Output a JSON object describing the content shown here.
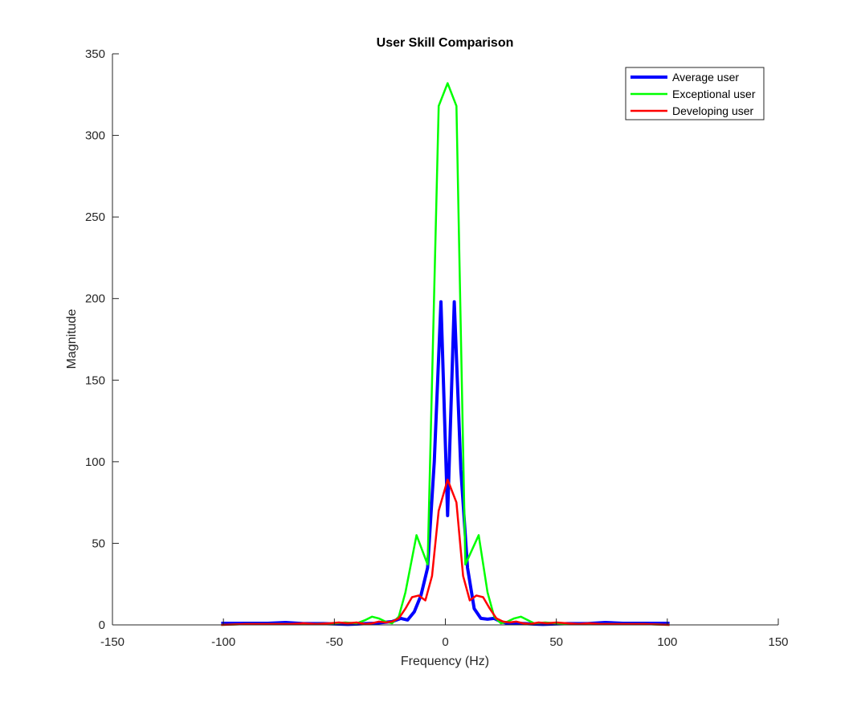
{
  "chart_data": {
    "type": "line",
    "title": "User Skill Comparison",
    "xlabel": "Frequency (Hz)",
    "ylabel": "Magnitude",
    "xlim": [
      -150,
      150
    ],
    "ylim": [
      0,
      350
    ],
    "xticks": [
      -150,
      -100,
      -50,
      0,
      50,
      100,
      150
    ],
    "yticks": [
      0,
      50,
      100,
      150,
      200,
      250,
      300,
      350
    ],
    "xtick_labels": [
      "-150",
      "-100",
      "-50",
      "0",
      "50",
      "100",
      "150"
    ],
    "ytick_labels": [
      "0",
      "50",
      "100",
      "150",
      "200",
      "250",
      "300",
      "350"
    ],
    "grid": false,
    "legend_position": "top-right",
    "series": [
      {
        "name": "Average user",
        "color": "#0000ff",
        "line_width": 4,
        "points": [
          [
            -101,
            1
          ],
          [
            -90,
            1
          ],
          [
            -80,
            1
          ],
          [
            -72,
            1.5
          ],
          [
            -64,
            0.8
          ],
          [
            -55,
            0.8
          ],
          [
            -48,
            0.5
          ],
          [
            -44,
            0.3
          ],
          [
            -40,
            0.5
          ],
          [
            -36,
            0.8
          ],
          [
            -32,
            1
          ],
          [
            -28,
            1.5
          ],
          [
            -24,
            2
          ],
          [
            -20,
            4
          ],
          [
            -17,
            3
          ],
          [
            -14,
            8
          ],
          [
            -11,
            18
          ],
          [
            -8,
            35
          ],
          [
            -5,
            100
          ],
          [
            -2,
            198
          ],
          [
            1,
            67
          ],
          [
            4,
            198
          ],
          [
            7,
            95
          ],
          [
            10,
            35
          ],
          [
            13,
            10
          ],
          [
            16,
            4
          ],
          [
            19,
            3.5
          ],
          [
            22,
            4
          ],
          [
            25,
            2
          ],
          [
            28,
            1
          ],
          [
            32,
            1
          ],
          [
            36,
            0.8
          ],
          [
            40,
            0.5
          ],
          [
            44,
            0.3
          ],
          [
            48,
            0.5
          ],
          [
            55,
            0.8
          ],
          [
            64,
            0.8
          ],
          [
            72,
            1.5
          ],
          [
            80,
            1
          ],
          [
            90,
            1
          ],
          [
            101,
            1
          ]
        ]
      },
      {
        "name": "Exceptional user",
        "color": "#00ff00",
        "line_width": 2.5,
        "points": [
          [
            -101,
            0
          ],
          [
            -90,
            0.5
          ],
          [
            -80,
            0.5
          ],
          [
            -70,
            0.5
          ],
          [
            -60,
            0.5
          ],
          [
            -50,
            1
          ],
          [
            -45,
            1.5
          ],
          [
            -40,
            1
          ],
          [
            -36,
            3
          ],
          [
            -33,
            5
          ],
          [
            -30,
            4
          ],
          [
            -27,
            2
          ],
          [
            -24,
            1
          ],
          [
            -21,
            5
          ],
          [
            -18,
            20
          ],
          [
            -13,
            55
          ],
          [
            -8,
            37
          ],
          [
            -3,
            318
          ],
          [
            1,
            332
          ],
          [
            5,
            318
          ],
          [
            9,
            37
          ],
          [
            15,
            55
          ],
          [
            19,
            20
          ],
          [
            22,
            5
          ],
          [
            25,
            1
          ],
          [
            28,
            2
          ],
          [
            31,
            4
          ],
          [
            34,
            5
          ],
          [
            37,
            3
          ],
          [
            40,
            1
          ],
          [
            45,
            1.5
          ],
          [
            50,
            1
          ],
          [
            60,
            0.5
          ],
          [
            70,
            0.5
          ],
          [
            80,
            0.5
          ],
          [
            90,
            0.5
          ],
          [
            101,
            0
          ]
        ]
      },
      {
        "name": "Developing user",
        "color": "#ff0000",
        "line_width": 2.5,
        "points": [
          [
            -101,
            0
          ],
          [
            -90,
            0.5
          ],
          [
            -80,
            0.5
          ],
          [
            -70,
            0.5
          ],
          [
            -64,
            1
          ],
          [
            -58,
            0.5
          ],
          [
            -52,
            1
          ],
          [
            -48,
            1.5
          ],
          [
            -44,
            1
          ],
          [
            -40,
            1.5
          ],
          [
            -36,
            0.5
          ],
          [
            -33,
            1
          ],
          [
            -30,
            2
          ],
          [
            -27,
            1.5
          ],
          [
            -24,
            2
          ],
          [
            -21,
            4
          ],
          [
            -18,
            10
          ],
          [
            -15,
            17
          ],
          [
            -12,
            18
          ],
          [
            -9,
            15
          ],
          [
            -6,
            30
          ],
          [
            -3,
            70
          ],
          [
            1,
            89
          ],
          [
            5,
            75
          ],
          [
            8,
            30
          ],
          [
            11,
            15
          ],
          [
            14,
            18
          ],
          [
            17,
            17
          ],
          [
            20,
            10
          ],
          [
            23,
            4
          ],
          [
            26,
            2
          ],
          [
            29,
            1.5
          ],
          [
            32,
            2
          ],
          [
            35,
            1
          ],
          [
            38,
            0.5
          ],
          [
            42,
            1.5
          ],
          [
            46,
            1
          ],
          [
            50,
            1.5
          ],
          [
            55,
            1
          ],
          [
            60,
            0.5
          ],
          [
            65,
            1
          ],
          [
            70,
            0.5
          ],
          [
            80,
            0.5
          ],
          [
            90,
            0.5
          ],
          [
            101,
            0
          ]
        ]
      }
    ]
  }
}
